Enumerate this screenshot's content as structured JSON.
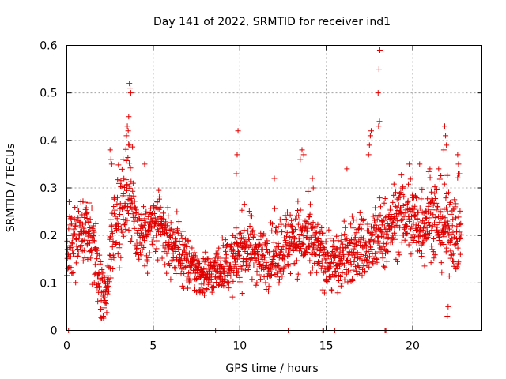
{
  "chart_data": {
    "type": "scatter",
    "title": "Day 141 of 2022, SRMTID for receiver ind1",
    "xlabel": "GPS time / hours",
    "ylabel": "SRMTID / TECUs",
    "xlim": [
      0,
      24
    ],
    "ylim": [
      0,
      0.6
    ],
    "xticks": [
      0,
      5,
      10,
      15,
      20
    ],
    "xtick_labels": [
      "0",
      "5",
      "10",
      "15",
      "20"
    ],
    "yticks": [
      0,
      0.1,
      0.2,
      0.3,
      0.4,
      0.5,
      0.6
    ],
    "ytick_labels": [
      "0",
      "0.1",
      "0.2",
      "0.3",
      "0.4",
      "0.5",
      "0.6"
    ],
    "grid": true,
    "marker": "plus",
    "color": "#e00000",
    "series_name": "SRMTID",
    "trend": [
      [
        0.0,
        0.18,
        0.05
      ],
      [
        0.5,
        0.19,
        0.05
      ],
      [
        1.0,
        0.21,
        0.05
      ],
      [
        1.5,
        0.17,
        0.05
      ],
      [
        2.0,
        0.09,
        0.05
      ],
      [
        2.3,
        0.07,
        0.04
      ],
      [
        2.7,
        0.24,
        0.06
      ],
      [
        3.2,
        0.26,
        0.07
      ],
      [
        3.6,
        0.32,
        0.08
      ],
      [
        4.0,
        0.21,
        0.05
      ],
      [
        4.6,
        0.2,
        0.05
      ],
      [
        5.2,
        0.22,
        0.05
      ],
      [
        5.8,
        0.19,
        0.05
      ],
      [
        6.5,
        0.17,
        0.04
      ],
      [
        7.2,
        0.13,
        0.035
      ],
      [
        7.8,
        0.12,
        0.035
      ],
      [
        8.4,
        0.12,
        0.03
      ],
      [
        9.0,
        0.14,
        0.035
      ],
      [
        9.6,
        0.14,
        0.04
      ],
      [
        10.2,
        0.18,
        0.05
      ],
      [
        10.8,
        0.17,
        0.045
      ],
      [
        11.4,
        0.15,
        0.04
      ],
      [
        12.0,
        0.16,
        0.045
      ],
      [
        12.6,
        0.18,
        0.05
      ],
      [
        13.2,
        0.2,
        0.05
      ],
      [
        13.8,
        0.19,
        0.05
      ],
      [
        14.4,
        0.17,
        0.045
      ],
      [
        15.0,
        0.15,
        0.04
      ],
      [
        15.6,
        0.14,
        0.045
      ],
      [
        16.2,
        0.16,
        0.045
      ],
      [
        16.8,
        0.18,
        0.05
      ],
      [
        17.4,
        0.17,
        0.05
      ],
      [
        18.0,
        0.2,
        0.05
      ],
      [
        18.6,
        0.21,
        0.05
      ],
      [
        19.2,
        0.24,
        0.05
      ],
      [
        19.8,
        0.24,
        0.06
      ],
      [
        20.4,
        0.22,
        0.06
      ],
      [
        21.0,
        0.25,
        0.06
      ],
      [
        21.6,
        0.22,
        0.06
      ],
      [
        22.2,
        0.22,
        0.06
      ],
      [
        22.8,
        0.2,
        0.06
      ]
    ],
    "highlights": [
      [
        3.62,
        0.52
      ],
      [
        3.66,
        0.51
      ],
      [
        3.7,
        0.5
      ],
      [
        3.58,
        0.45
      ],
      [
        3.5,
        0.43
      ],
      [
        3.55,
        0.42
      ],
      [
        3.45,
        0.41
      ],
      [
        3.6,
        0.39
      ],
      [
        2.5,
        0.38
      ],
      [
        2.55,
        0.36
      ],
      [
        2.6,
        0.35
      ],
      [
        4.5,
        0.35
      ],
      [
        9.9,
        0.42
      ],
      [
        9.85,
        0.37
      ],
      [
        9.8,
        0.33
      ],
      [
        18.1,
        0.59
      ],
      [
        18.05,
        0.55
      ],
      [
        18.0,
        0.5
      ],
      [
        18.08,
        0.44
      ],
      [
        18.03,
        0.43
      ],
      [
        17.6,
        0.42
      ],
      [
        17.55,
        0.41
      ],
      [
        17.5,
        0.39
      ],
      [
        17.45,
        0.37
      ],
      [
        13.6,
        0.38
      ],
      [
        13.7,
        0.37
      ],
      [
        13.5,
        0.36
      ],
      [
        14.2,
        0.32
      ],
      [
        14.25,
        0.3
      ],
      [
        21.85,
        0.43
      ],
      [
        21.9,
        0.41
      ],
      [
        21.95,
        0.39
      ],
      [
        21.8,
        0.38
      ],
      [
        22.6,
        0.37
      ],
      [
        22.65,
        0.35
      ],
      [
        22.7,
        0.33
      ],
      [
        19.8,
        0.35
      ],
      [
        20.4,
        0.35
      ],
      [
        21.0,
        0.34
      ],
      [
        21.5,
        0.34
      ],
      [
        12.0,
        0.32
      ],
      [
        16.2,
        0.34
      ],
      [
        0.1,
        0.0
      ],
      [
        8.6,
        0.0
      ],
      [
        12.8,
        0.0
      ],
      [
        14.8,
        0.0
      ],
      [
        14.85,
        0.0
      ],
      [
        15.5,
        0.0
      ],
      [
        18.4,
        0.0
      ],
      [
        18.45,
        0.0
      ],
      [
        2.1,
        0.03
      ],
      [
        2.15,
        0.02
      ],
      [
        22.0,
        0.03
      ],
      [
        22.05,
        0.05
      ]
    ]
  }
}
